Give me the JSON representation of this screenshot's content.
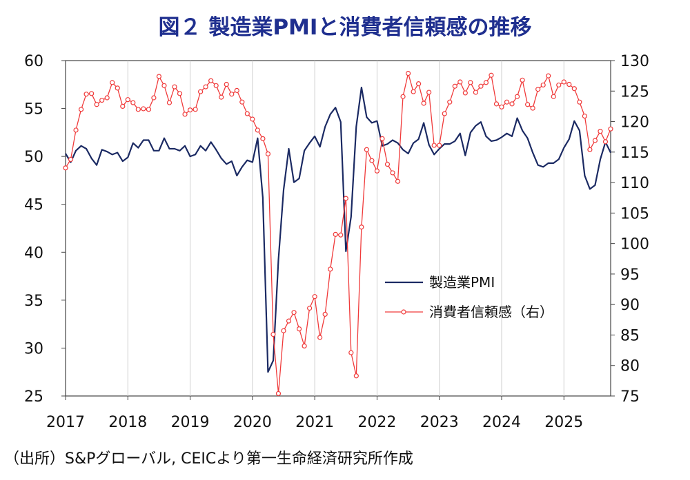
{
  "title": "図２ 製造業PMIと消費者信頼感の推移",
  "source": "（出所）S&Pグローバル, CEICより第一生命経済研究所作成",
  "chart_data": {
    "type": "line",
    "x_labels": [
      "2017",
      "2018",
      "2019",
      "2020",
      "2021",
      "2022",
      "2023",
      "2024",
      "2025"
    ],
    "y_left": {
      "min": 25,
      "max": 60,
      "ticks": [
        25,
        30,
        35,
        40,
        45,
        50,
        55,
        60
      ]
    },
    "y_right": {
      "min": 75,
      "max": 130,
      "ticks": [
        75,
        80,
        85,
        90,
        95,
        100,
        105,
        110,
        115,
        120,
        125,
        130
      ]
    },
    "legend_position": "center-right",
    "series": [
      {
        "name": "製造業PMI",
        "axis": "left",
        "color": "#1b2a63",
        "marker": "none",
        "values": [
          50.3,
          49.4,
          50.6,
          51.1,
          50.8,
          49.8,
          49.1,
          50.7,
          50.5,
          50.2,
          50.4,
          49.5,
          49.9,
          51.4,
          50.9,
          51.7,
          51.7,
          50.6,
          50.6,
          51.9,
          50.8,
          50.8,
          50.6,
          51.1,
          50.0,
          50.2,
          51.1,
          50.6,
          51.5,
          50.7,
          49.8,
          49.2,
          49.5,
          48.0,
          48.9,
          49.6,
          49.4,
          51.9,
          45.7,
          27.5,
          28.7,
          39.2,
          46.5,
          50.8,
          47.3,
          47.7,
          50.6,
          51.4,
          52.1,
          51.0,
          53.1,
          54.4,
          55.1,
          53.6,
          40.1,
          43.7,
          53.1,
          57.2,
          54.1,
          53.5,
          53.7,
          51.1,
          51.3,
          51.7,
          51.4,
          50.7,
          50.3,
          51.4,
          51.8,
          53.5,
          51.2,
          50.2,
          50.8,
          51.3,
          51.3,
          51.6,
          52.4,
          50.1,
          52.5,
          53.2,
          53.6,
          52.1,
          51.6,
          51.7,
          52.0,
          52.4,
          52.1,
          54.0,
          52.7,
          51.9,
          50.4,
          49.1,
          48.9,
          49.3,
          49.3,
          49.7,
          50.9,
          51.8,
          53.7,
          52.7,
          48.0,
          46.6,
          47.0,
          49.7,
          51.5,
          50.4
        ]
      },
      {
        "name": "消費者信頼感（右）",
        "axis": "right",
        "color": "#f03a3a",
        "marker": "circle",
        "values": [
          112.4,
          113.8,
          118.6,
          122.0,
          124.5,
          124.6,
          122.8,
          123.5,
          123.9,
          126.4,
          125.5,
          122.5,
          123.6,
          123.1,
          122.0,
          122.1,
          122.0,
          123.9,
          127.4,
          125.9,
          123.1,
          125.7,
          124.6,
          121.2,
          121.9,
          122.0,
          124.9,
          125.7,
          126.7,
          125.9,
          124.0,
          126.1,
          124.5,
          125.1,
          123.2,
          121.3,
          120.4,
          118.6,
          117.2,
          114.7,
          85.1,
          75.4,
          85.7,
          87.3,
          88.7,
          86.0,
          83.2,
          89.4,
          91.3,
          84.6,
          88.4,
          95.8,
          101.5,
          101.4,
          107.4,
          82.1,
          78.3,
          102.7,
          115.4,
          113.6,
          111.9,
          117.2,
          113.0,
          111.6,
          110.2,
          124.1,
          127.9,
          124.9,
          126.2,
          123.0,
          124.8,
          116.1,
          116.1,
          121.3,
          123.2,
          125.8,
          126.5,
          124.7,
          126.4,
          124.8,
          125.8,
          126.4,
          127.6,
          122.9,
          122.4,
          123.2,
          122.9,
          124.1,
          126.8,
          122.8,
          122.2,
          125.3,
          126.0,
          127.5,
          124.1,
          126.0,
          126.5,
          126.1,
          125.4,
          123.2,
          120.9,
          115.4,
          116.9,
          118.4,
          116.7,
          118.8
        ]
      }
    ]
  }
}
